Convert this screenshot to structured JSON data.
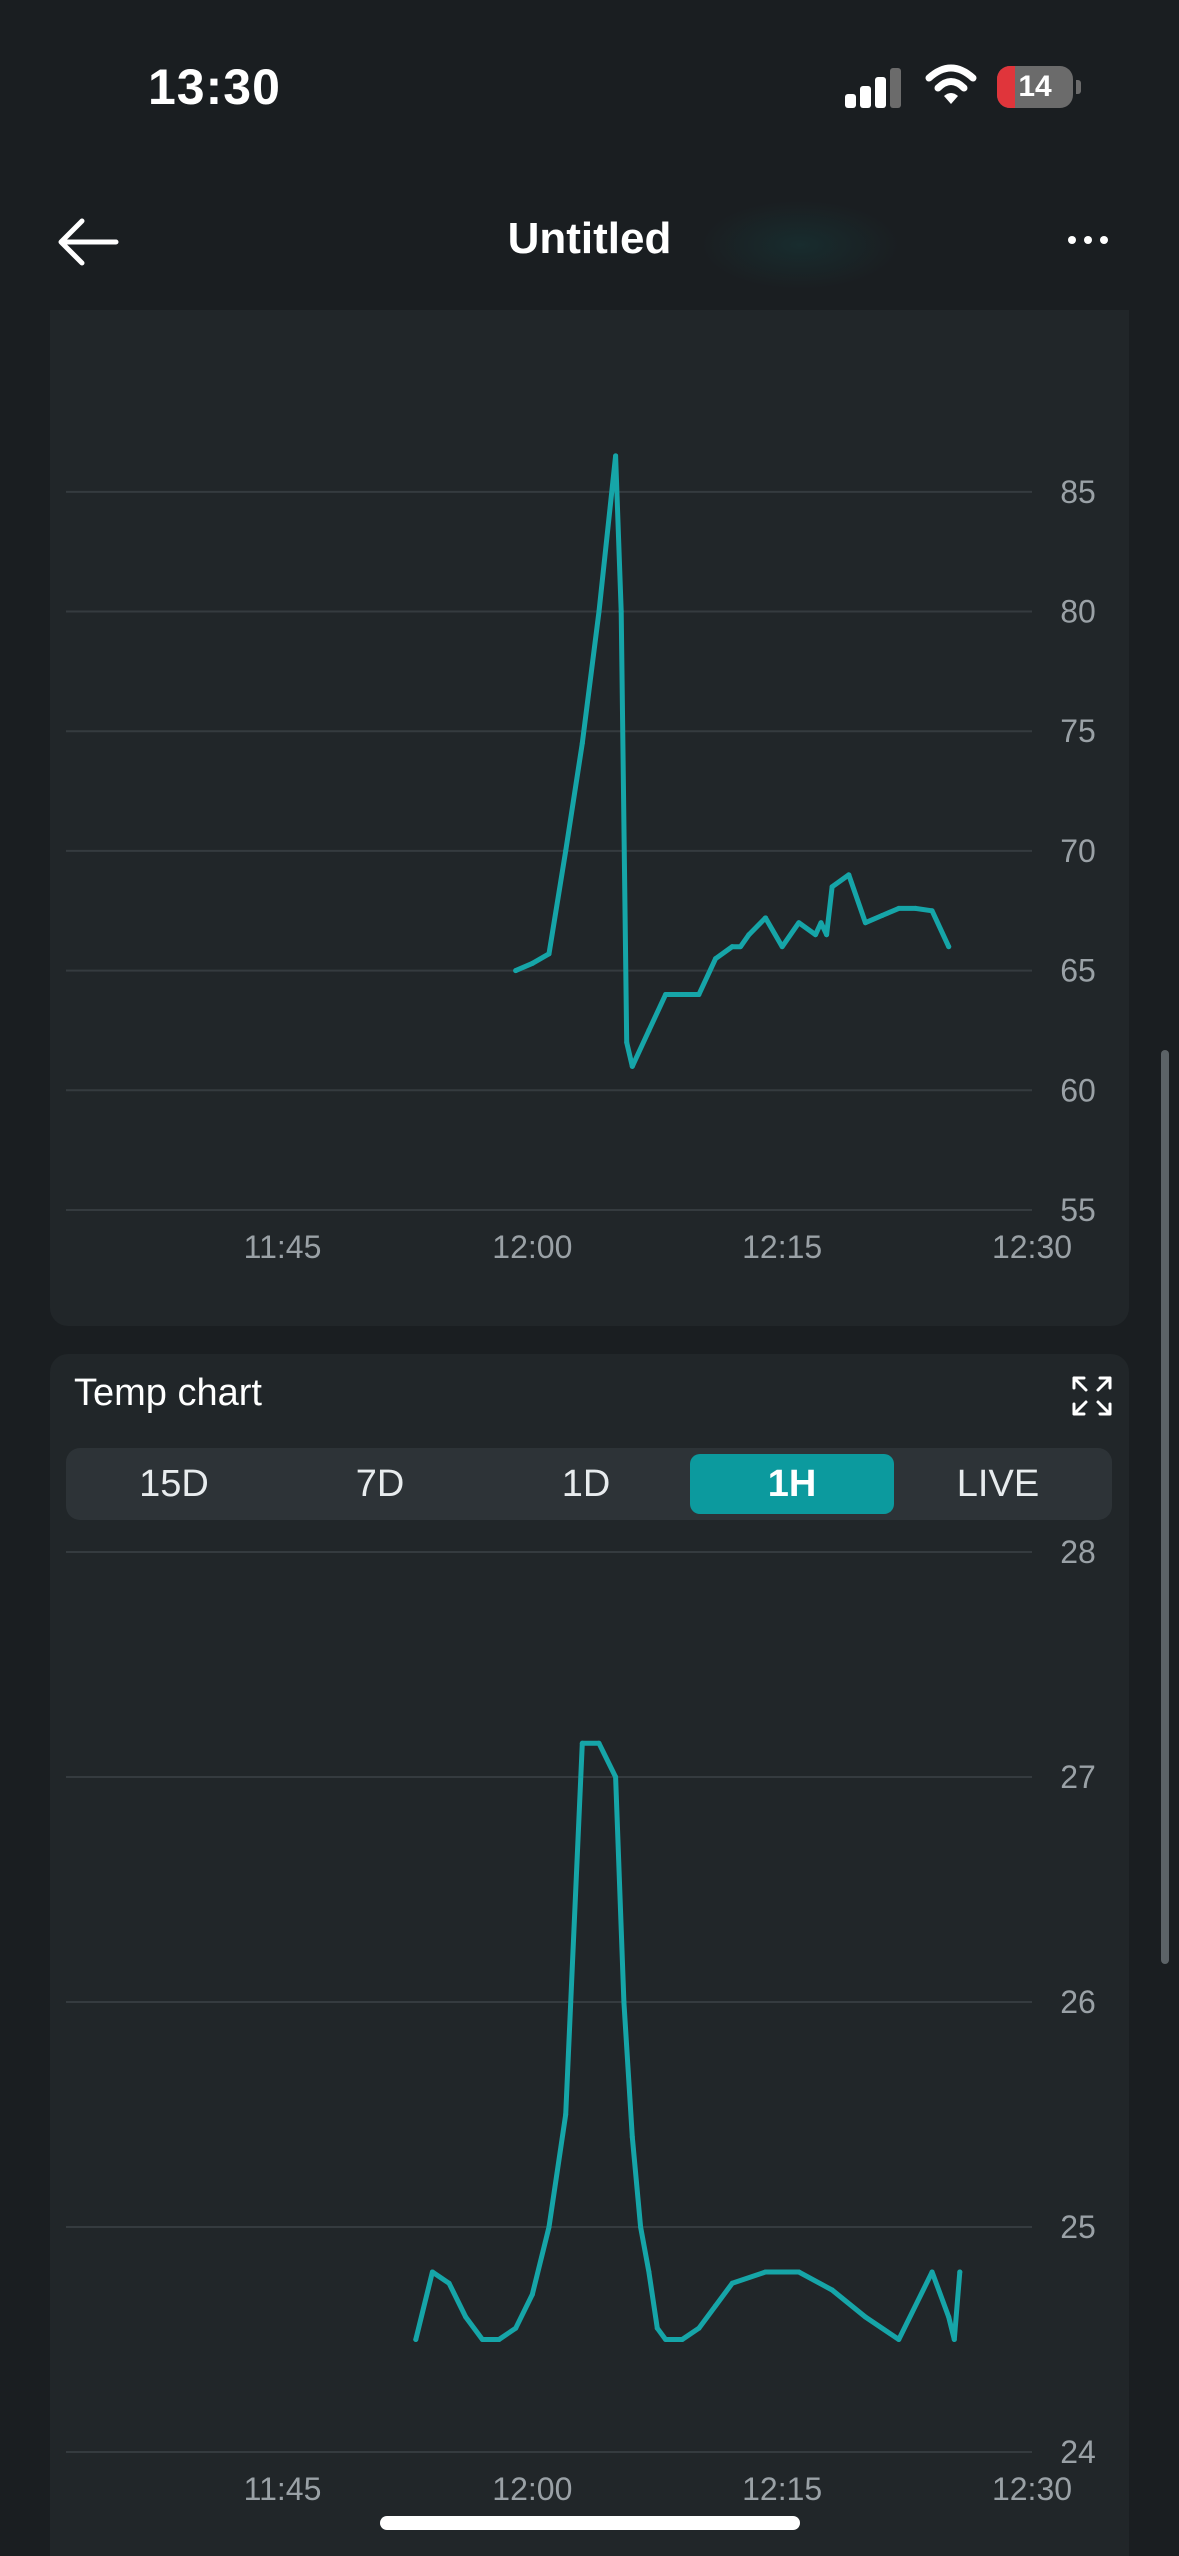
{
  "status_bar": {
    "time": "13:30",
    "battery_level": "14",
    "signal_bars": 3,
    "icons": [
      "signal-icon",
      "wifi-icon",
      "battery-icon"
    ]
  },
  "nav": {
    "title": "Untitled",
    "back_icon": "arrow-left-icon",
    "more_icon": "more-horizontal-icon"
  },
  "colors": {
    "accent": "#0c9a9e",
    "series": "#16a5a8",
    "background": "#1a1e21",
    "card": "#212629"
  },
  "humidity_card": {
    "chart_data": {
      "type": "line",
      "x_ticks": [
        "11:45",
        "12:00",
        "12:15",
        "12:30"
      ],
      "y_ticks": [
        55,
        60,
        65,
        70,
        75,
        80,
        85
      ],
      "ylim": [
        55,
        88
      ],
      "xlim": [
        "11:32",
        "12:30"
      ],
      "grid": true,
      "x": [
        "11:59",
        "12:00",
        "12:01",
        "12:02",
        "12:03",
        "12:04",
        "12:05",
        "12:05",
        "12:05",
        "12:06",
        "12:07",
        "12:08",
        "12:09",
        "12:10",
        "12:11",
        "12:12",
        "12:12",
        "12:13",
        "12:14",
        "12:15",
        "12:16",
        "12:17",
        "12:17",
        "12:17",
        "12:18",
        "12:19",
        "12:20",
        "12:21",
        "12:22",
        "12:23",
        "12:24",
        "12:25"
      ],
      "y": [
        65.0,
        65.3,
        65.7,
        70.0,
        74.5,
        80.0,
        86.5,
        80.0,
        62.0,
        61.0,
        62.5,
        64.0,
        64.0,
        64.0,
        65.5,
        66.0,
        66.0,
        66.5,
        67.2,
        66.0,
        67.0,
        66.5,
        67.0,
        66.5,
        68.5,
        69.0,
        67.0,
        67.3,
        67.6,
        67.6,
        67.5,
        66.0
      ]
    }
  },
  "temp_card": {
    "title": "Temp chart",
    "expand_icon": "expand-icon",
    "range_tabs": [
      "15D",
      "7D",
      "1D",
      "1H",
      "LIVE"
    ],
    "active_tab": "1H",
    "chart_data": {
      "type": "line",
      "x_ticks": [
        "11:45",
        "12:00",
        "12:15",
        "12:30"
      ],
      "y_ticks": [
        24,
        25,
        26,
        27,
        28
      ],
      "ylim": [
        24,
        28
      ],
      "xlim": [
        "11:32",
        "12:30"
      ],
      "grid": true,
      "x": [
        "11:53",
        "11:54",
        "11:55",
        "11:56",
        "11:57",
        "11:58",
        "11:59",
        "12:00",
        "12:01",
        "12:02",
        "12:03",
        "12:04",
        "12:05",
        "12:05",
        "12:06",
        "12:06",
        "12:07",
        "12:07",
        "12:08",
        "12:09",
        "12:10",
        "12:11",
        "12:12",
        "12:14",
        "12:16",
        "12:18",
        "12:20",
        "12:22",
        "12:24",
        "12:25",
        "12:25",
        "12:25"
      ],
      "y": [
        24.5,
        24.8,
        24.75,
        24.6,
        24.5,
        24.5,
        24.55,
        24.7,
        25.0,
        25.5,
        27.15,
        27.15,
        27.0,
        26.0,
        25.4,
        25.0,
        24.8,
        24.55,
        24.5,
        24.5,
        24.55,
        24.65,
        24.75,
        24.8,
        24.8,
        24.72,
        24.6,
        24.5,
        24.8,
        24.6,
        24.5,
        24.8
      ]
    }
  }
}
